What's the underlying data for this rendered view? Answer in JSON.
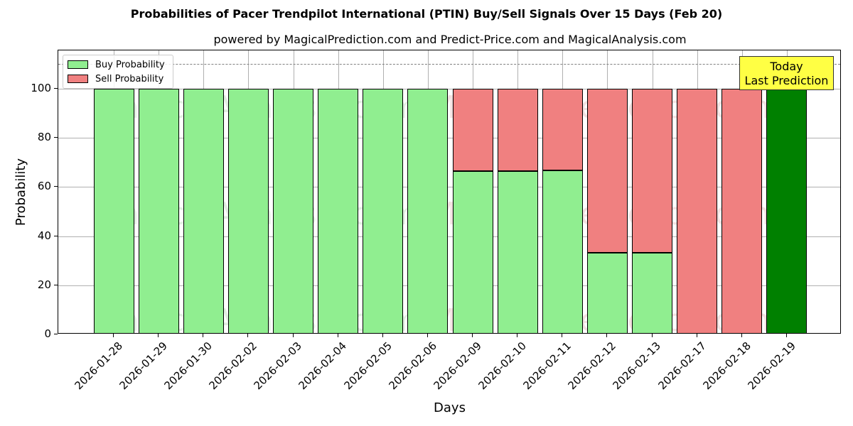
{
  "chart_data": {
    "type": "bar",
    "stacked": true,
    "title": "Probabilities of Pacer Trendpilot International  (PTIN) Buy/Sell Signals Over 15 Days (Feb 20)",
    "subtitle": "powered by MagicalPrediction.com and Predict-Price.com and MagicalAnalysis.com",
    "xlabel": "Days",
    "ylabel": "Probability",
    "ylim": [
      0,
      115
    ],
    "yticks": [
      0,
      20,
      40,
      60,
      80,
      100
    ],
    "grid": true,
    "legend_position": "upper left",
    "reference_line": {
      "y": 110,
      "style": "dashed",
      "color": "#808080"
    },
    "categories": [
      "2026-01-28",
      "2026-01-29",
      "2026-01-30",
      "2026-02-02",
      "2026-02-03",
      "2026-02-04",
      "2026-02-05",
      "2026-02-06",
      "2026-02-09",
      "2026-02-10",
      "2026-02-11",
      "2026-02-12",
      "2026-02-13",
      "2026-02-17",
      "2026-02-18",
      "2026-02-19"
    ],
    "series": [
      {
        "name": "Buy Probability",
        "color": "#90ee90",
        "values": [
          100,
          100,
          100,
          100,
          100,
          100,
          100,
          100,
          66.5,
          66.5,
          66.8,
          33.2,
          33.2,
          0,
          0,
          100
        ]
      },
      {
        "name": "Sell Probability",
        "color": "#f08080",
        "values": [
          0,
          0,
          0,
          0,
          0,
          0,
          0,
          0,
          33.5,
          33.5,
          33.2,
          66.8,
          66.8,
          100,
          100,
          0
        ]
      }
    ],
    "highlight": {
      "index": 15,
      "color": "#008000"
    },
    "annotation": {
      "line1": "Today",
      "line2": "Last Prediction",
      "background": "#ffff44"
    },
    "watermarks": [
      "MagicalAnalysis.com",
      "MagicalPrediction.com"
    ]
  }
}
